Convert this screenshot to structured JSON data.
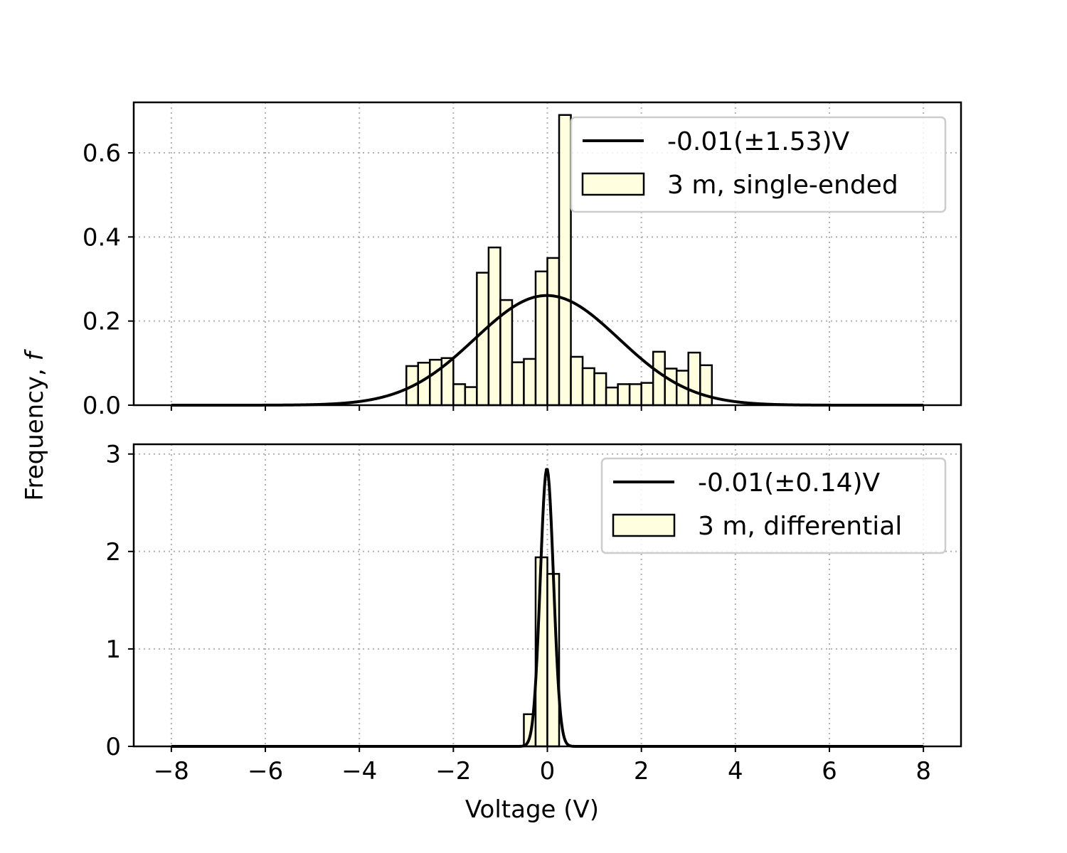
{
  "figure": {
    "xlabel": "Voltage (V)",
    "ylabel_text": "Frequency, ",
    "ylabel_symbol": "f"
  },
  "colors": {
    "bar_fill": "#ffffe0",
    "bar_edge": "#000000",
    "line": "#000000",
    "grid": "#b0b0b0"
  },
  "chart_data": [
    {
      "type": "bar",
      "subtype": "histogram-with-normal-fit",
      "xlim": [
        -8.8,
        8.8
      ],
      "ylim": [
        0,
        0.72
      ],
      "xticks": [
        -8,
        -6,
        -4,
        -2,
        0,
        2,
        4,
        6,
        8
      ],
      "xtick_labels": [
        "−8",
        "−6",
        "−4",
        "−2",
        "0",
        "2",
        "4",
        "6",
        "8"
      ],
      "yticks": [
        0.0,
        0.2,
        0.4,
        0.6
      ],
      "ytick_labels": [
        "0.0",
        "0.2",
        "0.4",
        "0.6"
      ],
      "show_xtick_labels": false,
      "grid": true,
      "legend_position": "top-right",
      "bin_edges": [
        -3.0,
        -2.75,
        -2.5,
        -2.25,
        -2.0,
        -1.75,
        -1.5,
        -1.25,
        -1.0,
        -0.75,
        -0.5,
        -0.25,
        0.0,
        0.25,
        0.5,
        0.75,
        1.0,
        1.25,
        1.5,
        1.75,
        2.0,
        2.25,
        2.5,
        2.75,
        3.0,
        3.25,
        3.5
      ],
      "counts": [
        0.093,
        0.101,
        0.108,
        0.112,
        0.05,
        0.043,
        0.315,
        0.375,
        0.25,
        0.102,
        0.11,
        0.318,
        0.35,
        0.69,
        0.115,
        0.088,
        0.076,
        0.042,
        0.05,
        0.05,
        0.053,
        0.127,
        0.087,
        0.082,
        0.125,
        0.095
      ],
      "fit": {
        "mean": -0.01,
        "std": 1.53,
        "x_range": [
          -8,
          8
        ]
      },
      "series": [
        {
          "name": "-0.01(±1.53)V",
          "kind": "line"
        },
        {
          "name": "3 m, single-ended",
          "kind": "bar"
        }
      ]
    },
    {
      "type": "bar",
      "subtype": "histogram-with-normal-fit",
      "xlim": [
        -8.8,
        8.8
      ],
      "ylim": [
        0,
        3.1
      ],
      "xticks": [
        -8,
        -6,
        -4,
        -2,
        0,
        2,
        4,
        6,
        8
      ],
      "xtick_labels": [
        "−8",
        "−6",
        "−4",
        "−2",
        "0",
        "2",
        "4",
        "6",
        "8"
      ],
      "yticks": [
        0,
        1,
        2,
        3
      ],
      "ytick_labels": [
        "0",
        "1",
        "2",
        "3"
      ],
      "show_xtick_labels": true,
      "grid": true,
      "legend_position": "top-right",
      "bin_edges": [
        -0.5,
        -0.25,
        0.0,
        0.25
      ],
      "counts": [
        0.33,
        1.94,
        1.77
      ],
      "fit": {
        "mean": -0.01,
        "std": 0.14,
        "x_range": [
          -8,
          8
        ]
      },
      "series": [
        {
          "name": "-0.01(±0.14)V",
          "kind": "line"
        },
        {
          "name": "3 m, differential",
          "kind": "bar"
        }
      ]
    }
  ]
}
